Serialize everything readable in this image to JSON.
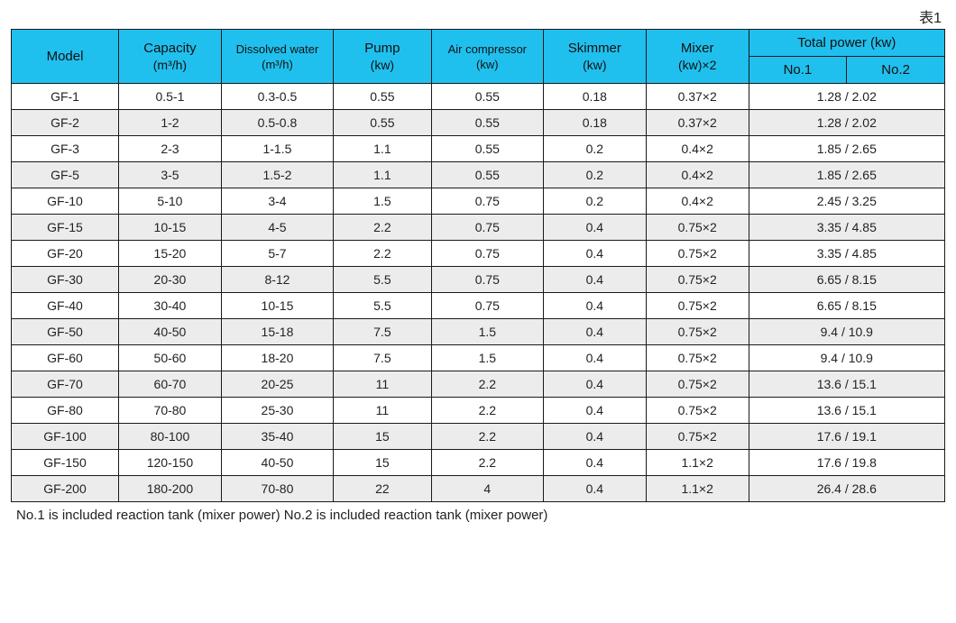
{
  "caption": "表1",
  "footnote": "No.1 is included reaction tank (mixer power) No.2 is included reaction tank (mixer power)",
  "colors": {
    "header_bg": "#20c0ee",
    "border": "#1a1a1a",
    "row_alt_bg": "#ececec",
    "text": "#222222",
    "background": "#ffffff"
  },
  "header": {
    "model": "Model",
    "capacity_label": "Capacity",
    "capacity_unit": "(m³/h)",
    "dissolved_label": "Dissolved water",
    "dissolved_unit": "(m³/h)",
    "pump_label": "Pump",
    "pump_unit": "(kw)",
    "air_label": "Air compressor",
    "air_unit": "(kw)",
    "skimmer_label": "Skimmer",
    "skimmer_unit": "(kw)",
    "mixer_label": "Mixer",
    "mixer_unit": "(kw)×2",
    "total_label": "Total power (kw)",
    "total_no1": "No.1",
    "total_no2": "No.2"
  },
  "col_widths": {
    "model": "11.5%",
    "capacity": "11%",
    "dissolved": "12%",
    "pump": "10.5%",
    "air": "12%",
    "skimmer": "11%",
    "mixer": "11%",
    "no1": "10.5%",
    "no2": "10.5%"
  },
  "rows": [
    {
      "model": "GF-1",
      "capacity": "0.5-1",
      "dissolved": "0.3-0.5",
      "pump": "0.55",
      "air": "0.55",
      "skimmer": "0.18",
      "mixer": "0.37×2",
      "total": "1.28 / 2.02"
    },
    {
      "model": "GF-2",
      "capacity": "1-2",
      "dissolved": "0.5-0.8",
      "pump": "0.55",
      "air": "0.55",
      "skimmer": "0.18",
      "mixer": "0.37×2",
      "total": "1.28 / 2.02"
    },
    {
      "model": "GF-3",
      "capacity": "2-3",
      "dissolved": "1-1.5",
      "pump": "1.1",
      "air": "0.55",
      "skimmer": "0.2",
      "mixer": "0.4×2",
      "total": "1.85 / 2.65"
    },
    {
      "model": "GF-5",
      "capacity": "3-5",
      "dissolved": "1.5-2",
      "pump": "1.1",
      "air": "0.55",
      "skimmer": "0.2",
      "mixer": "0.4×2",
      "total": "1.85 / 2.65"
    },
    {
      "model": "GF-10",
      "capacity": "5-10",
      "dissolved": "3-4",
      "pump": "1.5",
      "air": "0.75",
      "skimmer": "0.2",
      "mixer": "0.4×2",
      "total": "2.45 / 3.25"
    },
    {
      "model": "GF-15",
      "capacity": "10-15",
      "dissolved": "4-5",
      "pump": "2.2",
      "air": "0.75",
      "skimmer": "0.4",
      "mixer": "0.75×2",
      "total": "3.35 / 4.85"
    },
    {
      "model": "GF-20",
      "capacity": "15-20",
      "dissolved": "5-7",
      "pump": "2.2",
      "air": "0.75",
      "skimmer": "0.4",
      "mixer": "0.75×2",
      "total": "3.35 / 4.85"
    },
    {
      "model": "GF-30",
      "capacity": "20-30",
      "dissolved": "8-12",
      "pump": "5.5",
      "air": "0.75",
      "skimmer": "0.4",
      "mixer": "0.75×2",
      "total": "6.65 / 8.15"
    },
    {
      "model": "GF-40",
      "capacity": "30-40",
      "dissolved": "10-15",
      "pump": "5.5",
      "air": "0.75",
      "skimmer": "0.4",
      "mixer": "0.75×2",
      "total": "6.65 / 8.15"
    },
    {
      "model": "GF-50",
      "capacity": "40-50",
      "dissolved": "15-18",
      "pump": "7.5",
      "air": "1.5",
      "skimmer": "0.4",
      "mixer": "0.75×2",
      "total": "9.4 / 10.9"
    },
    {
      "model": "GF-60",
      "capacity": "50-60",
      "dissolved": "18-20",
      "pump": "7.5",
      "air": "1.5",
      "skimmer": "0.4",
      "mixer": "0.75×2",
      "total": "9.4 / 10.9"
    },
    {
      "model": "GF-70",
      "capacity": "60-70",
      "dissolved": "20-25",
      "pump": "11",
      "air": "2.2",
      "skimmer": "0.4",
      "mixer": "0.75×2",
      "total": "13.6 / 15.1"
    },
    {
      "model": "GF-80",
      "capacity": "70-80",
      "dissolved": "25-30",
      "pump": "11",
      "air": "2.2",
      "skimmer": "0.4",
      "mixer": "0.75×2",
      "total": "13.6 / 15.1"
    },
    {
      "model": "GF-100",
      "capacity": "80-100",
      "dissolved": "35-40",
      "pump": "15",
      "air": "2.2",
      "skimmer": "0.4",
      "mixer": "0.75×2",
      "total": "17.6 / 19.1"
    },
    {
      "model": "GF-150",
      "capacity": "120-150",
      "dissolved": "40-50",
      "pump": "15",
      "air": "2.2",
      "skimmer": "0.4",
      "mixer": "1.1×2",
      "total": "17.6 / 19.8"
    },
    {
      "model": "GF-200",
      "capacity": "180-200",
      "dissolved": "70-80",
      "pump": "22",
      "air": "4",
      "skimmer": "0.4",
      "mixer": "1.1×2",
      "total": "26.4 / 28.6"
    }
  ]
}
